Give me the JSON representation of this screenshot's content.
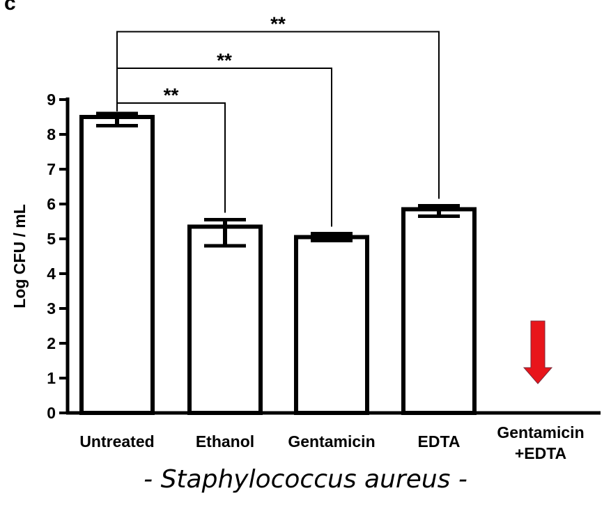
{
  "panel_letter": "c",
  "caption": "- Staphylococcus aureus -",
  "colors": {
    "bar_fill": "#ffffff",
    "bar_stroke": "#000000",
    "arrow": "#e8151b"
  },
  "arrow_icon": "down-arrow-icon",
  "chart_data": {
    "type": "bar",
    "title": "",
    "xlabel": "",
    "ylabel": "Log CFU / mL",
    "ylim": [
      0,
      9
    ],
    "yticks": [
      "0",
      "1",
      "2",
      "3",
      "4",
      "5",
      "6",
      "7",
      "8",
      "9"
    ],
    "categories": [
      [
        "Untreated"
      ],
      [
        "Ethanol"
      ],
      [
        "Gentamicin"
      ],
      [
        "EDTA"
      ],
      [
        "Gentamicin",
        "+EDTA"
      ]
    ],
    "values": [
      8.5,
      5.35,
      5.05,
      5.85,
      null
    ],
    "error_low": [
      8.25,
      4.8,
      4.95,
      5.65,
      null
    ],
    "error_high": [
      8.6,
      5.55,
      5.15,
      5.95,
      null
    ],
    "grid": false,
    "significance": [
      {
        "from": 0,
        "to": 1,
        "label": "**",
        "bracket_y": 8.9
      },
      {
        "from": 0,
        "to": 2,
        "label": "**",
        "bracket_y": 9.9
      },
      {
        "from": 0,
        "to": 3,
        "label": "**",
        "bracket_y": 10.95
      }
    ],
    "annotation": {
      "category_index": 4,
      "meaning": "below detection",
      "icon": "down-arrow-icon"
    }
  }
}
